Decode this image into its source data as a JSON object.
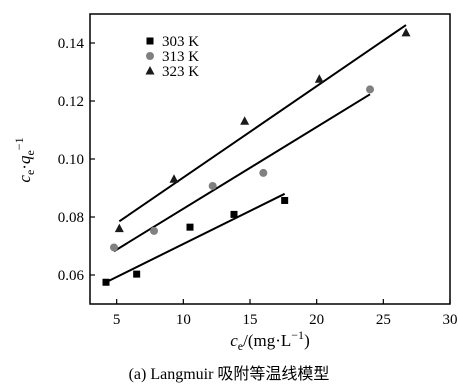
{
  "caption": "(a) Langmuir 吸附等温线模型",
  "chart_data": {
    "type": "scatter",
    "xlabel": {
      "main": "c",
      "sub": "e",
      "unit": "/(mg·L",
      "sup": "−1",
      "close": ")"
    },
    "ylabel": {
      "c": "c",
      "sub1": "e",
      "dot": "·",
      "q": "q",
      "sub2": "e",
      "sup": "−1"
    },
    "xlim": [
      3,
      30
    ],
    "ylim": [
      0.05,
      0.15
    ],
    "xticks": [
      5,
      10,
      15,
      20,
      25,
      30
    ],
    "yticks": [
      0.06,
      0.08,
      0.1,
      0.12,
      0.14
    ],
    "ytick_labels": [
      "0.06",
      "0.08",
      "0.10",
      "0.12",
      "0.14"
    ],
    "grid": false,
    "legend_position": "top-left",
    "series": [
      {
        "name": "303 K",
        "marker": "square",
        "color": "#000000",
        "x": [
          4.2,
          6.5,
          10.5,
          13.8,
          17.6
        ],
        "y": [
          0.0575,
          0.0603,
          0.0765,
          0.0809,
          0.0857
        ],
        "fit": {
          "x": [
            4.2,
            17.6
          ],
          "y": [
            0.0575,
            0.088
          ]
        }
      },
      {
        "name": "313 K",
        "marker": "circle",
        "color": "#808080",
        "x": [
          4.8,
          7.8,
          12.2,
          16.0,
          24.0
        ],
        "y": [
          0.0695,
          0.0752,
          0.0907,
          0.0952,
          0.124
        ],
        "fit": {
          "x": [
            4.8,
            24.0
          ],
          "y": [
            0.0682,
            0.1223
          ]
        }
      },
      {
        "name": "323 K",
        "marker": "triangle",
        "color": "#1a1a1a",
        "x": [
          5.2,
          9.3,
          14.6,
          20.2,
          26.7
        ],
        "y": [
          0.076,
          0.093,
          0.113,
          0.1275,
          0.1435
        ],
        "fit": {
          "x": [
            5.2,
            26.7
          ],
          "y": [
            0.0785,
            0.1462
          ]
        }
      }
    ]
  }
}
